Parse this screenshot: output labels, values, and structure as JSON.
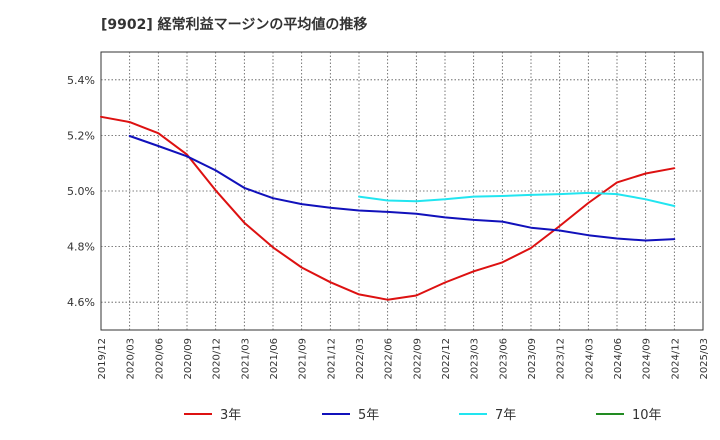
{
  "chart_data": {
    "type": "line",
    "title": "[9902]  経常利益マージンの平均値の推移",
    "xlabel": "",
    "ylabel": "",
    "ylim": [
      4.5,
      5.5
    ],
    "yticks": [
      4.6,
      4.8,
      5.0,
      5.2,
      5.4
    ],
    "ytick_labels": [
      "4.6%",
      "4.8%",
      "5.0%",
      "5.2%",
      "5.4%"
    ],
    "xlim": [
      "2019/12",
      "2025/03"
    ],
    "xtick_labels": [
      "2019/12",
      "2020/03",
      "2020/06",
      "2020/09",
      "2020/12",
      "2021/03",
      "2021/06",
      "2021/09",
      "2021/12",
      "2022/03",
      "2022/06",
      "2022/09",
      "2022/12",
      "2023/03",
      "2023/06",
      "2023/09",
      "2023/12",
      "2024/03",
      "2024/06",
      "2024/09",
      "2024/12",
      "2025/03"
    ],
    "grid": true,
    "legend_position": "bottom",
    "series": [
      {
        "name": "3年",
        "color": "#dd1111",
        "points": [
          [
            "2019/12",
            5.267
          ],
          [
            "2020/03",
            5.248
          ],
          [
            "2020/06",
            5.208
          ],
          [
            "2020/09",
            5.131
          ],
          [
            "2020/12",
            5.002
          ],
          [
            "2021/03",
            4.886
          ],
          [
            "2021/06",
            4.797
          ],
          [
            "2021/09",
            4.725
          ],
          [
            "2021/12",
            4.672
          ],
          [
            "2022/03",
            4.628
          ],
          [
            "2022/06",
            4.609
          ],
          [
            "2022/09",
            4.624
          ],
          [
            "2022/12",
            4.671
          ],
          [
            "2023/03",
            4.711
          ],
          [
            "2023/06",
            4.743
          ],
          [
            "2023/09",
            4.795
          ],
          [
            "2023/12",
            4.874
          ],
          [
            "2024/03",
            4.957
          ],
          [
            "2024/06",
            5.031
          ],
          [
            "2024/09",
            5.063
          ],
          [
            "2024/12",
            5.082
          ]
        ]
      },
      {
        "name": "5年",
        "color": "#1111bb",
        "points": [
          [
            "2020/03",
            5.198
          ],
          [
            "2020/06",
            5.162
          ],
          [
            "2020/09",
            5.125
          ],
          [
            "2020/12",
            5.074
          ],
          [
            "2021/03",
            5.011
          ],
          [
            "2021/06",
            4.974
          ],
          [
            "2021/09",
            4.953
          ],
          [
            "2021/12",
            4.94
          ],
          [
            "2022/03",
            4.93
          ],
          [
            "2022/06",
            4.925
          ],
          [
            "2022/09",
            4.918
          ],
          [
            "2022/12",
            4.905
          ],
          [
            "2023/03",
            4.896
          ],
          [
            "2023/06",
            4.89
          ],
          [
            "2023/09",
            4.868
          ],
          [
            "2023/12",
            4.858
          ],
          [
            "2024/03",
            4.841
          ],
          [
            "2024/06",
            4.829
          ],
          [
            "2024/09",
            4.822
          ],
          [
            "2024/12",
            4.827
          ]
        ]
      },
      {
        "name": "7年",
        "color": "#22e5f0",
        "points": [
          [
            "2022/03",
            4.98
          ],
          [
            "2022/06",
            4.966
          ],
          [
            "2022/09",
            4.963
          ],
          [
            "2022/12",
            4.97
          ],
          [
            "2023/03",
            4.98
          ],
          [
            "2023/06",
            4.982
          ],
          [
            "2023/09",
            4.986
          ],
          [
            "2023/12",
            4.989
          ],
          [
            "2024/03",
            4.993
          ],
          [
            "2024/06",
            4.989
          ],
          [
            "2024/09",
            4.97
          ],
          [
            "2024/12",
            4.946
          ]
        ]
      },
      {
        "name": "10年",
        "color": "#228b22",
        "points": []
      }
    ]
  }
}
